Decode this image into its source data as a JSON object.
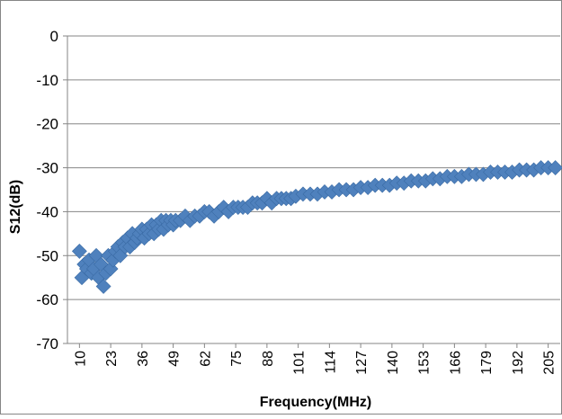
{
  "chart_data": {
    "type": "scatter",
    "title": "",
    "xlabel": "Frequency(MHz)",
    "ylabel": "S12(dB)",
    "ylim": [
      -70,
      0
    ],
    "yticks": [
      0,
      -10,
      -20,
      -30,
      -40,
      -50,
      -60,
      -70
    ],
    "xlim": [
      5,
      210
    ],
    "xticks": [
      10,
      23,
      36,
      49,
      62,
      75,
      88,
      101,
      114,
      127,
      140,
      153,
      166,
      179,
      192,
      205
    ],
    "grid": "horizontal",
    "legend": "none",
    "marker": "diamond",
    "colors": {
      "marker": "#4F81BD",
      "marker_edge": "#3A6BA5",
      "grid": "#868686",
      "axis": "#868686"
    },
    "series": [
      {
        "x": [
          10,
          11,
          12,
          13,
          14,
          15,
          16,
          17,
          18,
          19,
          20,
          21,
          22,
          23,
          24,
          25,
          26,
          27,
          28,
          29,
          30,
          31,
          32,
          33,
          34,
          35,
          36,
          37,
          38,
          39,
          40,
          41,
          42,
          43,
          44,
          45,
          46,
          47,
          48,
          49,
          50,
          52,
          54,
          56,
          58,
          60,
          62,
          64,
          66,
          68,
          70,
          72,
          74,
          76,
          78,
          80,
          82,
          84,
          86,
          88,
          90,
          92,
          94,
          96,
          98,
          100,
          103,
          106,
          109,
          112,
          115,
          118,
          121,
          124,
          127,
          130,
          133,
          136,
          139,
          142,
          145,
          148,
          151,
          154,
          157,
          160,
          163,
          166,
          169,
          172,
          175,
          178,
          181,
          184,
          187,
          190,
          193,
          196,
          199,
          202,
          205,
          208
        ],
        "y": [
          -49,
          -55,
          -52,
          -53,
          -51,
          -54,
          -53,
          -50,
          -55,
          -52,
          -57,
          -54,
          -50,
          -53,
          -51,
          -49,
          -48,
          -50,
          -47,
          -48,
          -46,
          -48,
          -45,
          -47,
          -46,
          -45,
          -44,
          -46,
          -44,
          -45,
          -43,
          -45,
          -43,
          -44,
          -42,
          -44,
          -42,
          -43,
          -42,
          -43,
          -42,
          -42,
          -41,
          -42,
          -41,
          -41,
          -40,
          -40,
          -41,
          -40,
          -39,
          -40,
          -39,
          -39,
          -39,
          -39,
          -38,
          -38,
          -38,
          -37,
          -38,
          -37,
          -37,
          -37,
          -37,
          -36.5,
          -36,
          -36,
          -36,
          -35.5,
          -35.5,
          -35,
          -35,
          -35,
          -34.5,
          -34.5,
          -34,
          -34,
          -34,
          -33.5,
          -33.5,
          -33,
          -33,
          -33,
          -32.5,
          -32.5,
          -32,
          -32,
          -32,
          -31.5,
          -31.5,
          -31.5,
          -31,
          -31,
          -31,
          -31,
          -30.5,
          -30.5,
          -30.5,
          -30,
          -30,
          -30
        ]
      }
    ]
  }
}
